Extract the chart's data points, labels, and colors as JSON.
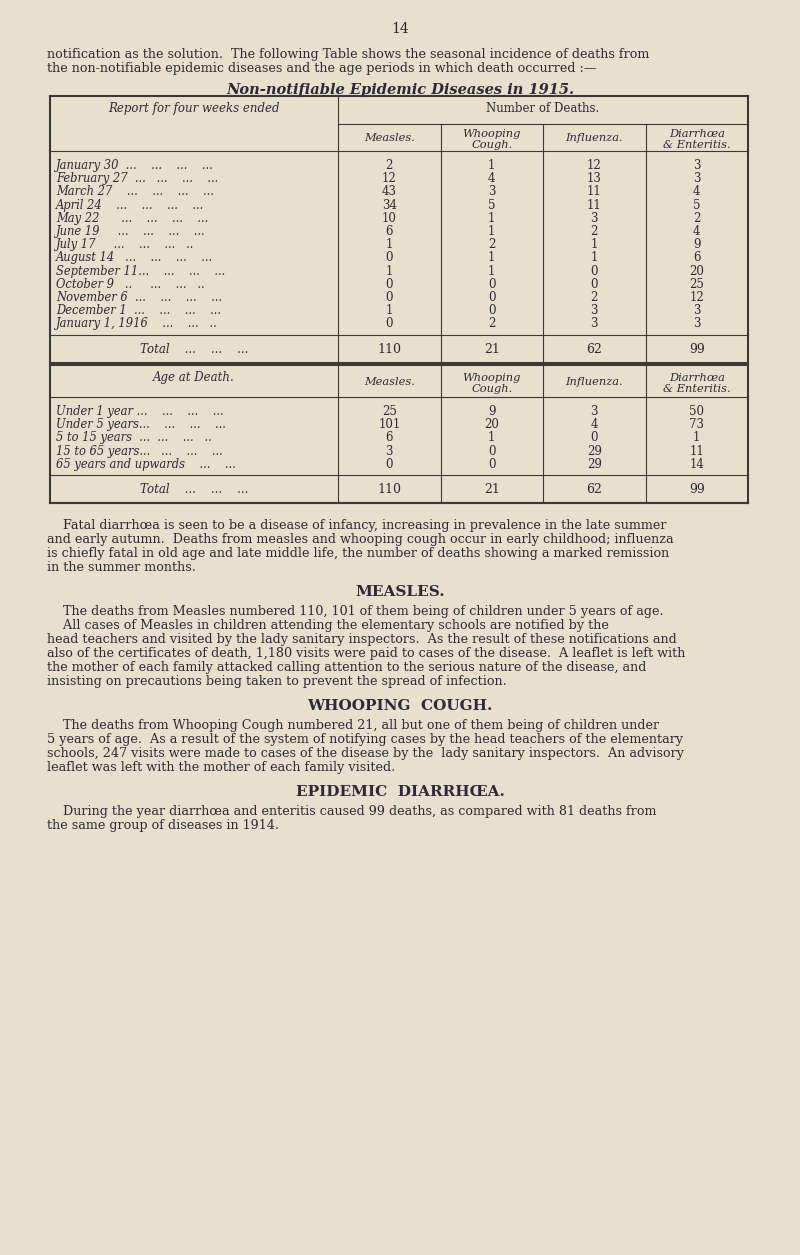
{
  "page_number": "14",
  "bg_color": "#e8e0cc",
  "text_color": "#2a2a3a",
  "intro_line1": "notification as the solution.  The following Table shows the seasonal incidence of deaths from",
  "intro_line2": "the non-notifiable epidemic diseases and the age periods in which death occurred :—",
  "table_title": "Non-notifiable Epidemic Diseases in 1915.",
  "table1_header_col0": "Report for four weeks ended",
  "table1_header_group": "Number of Deaths.",
  "table1_col_headers": [
    "Measles.",
    "Whooping\nCough.",
    "Influenza.",
    "Diarrhœa\n& Enteritis."
  ],
  "table1_rows": [
    [
      "January 30  ...    ...    ...    ...",
      "2",
      "1",
      "12",
      "3"
    ],
    [
      "February 27  ...   ...    ...    ...",
      "12",
      "4",
      "13",
      "3"
    ],
    [
      "March 27    ...    ...    ...    ...",
      "43",
      "3",
      "11",
      "4"
    ],
    [
      "April 24    ...    ...    ...    ...",
      "34",
      "5",
      "11",
      "5"
    ],
    [
      "May 22      ...    ...    ...    ...",
      "10",
      "1",
      "3",
      "2"
    ],
    [
      "June 19     ...    ...    ...    ...",
      "6",
      "1",
      "2",
      "4"
    ],
    [
      "July 17     ...    ...    ...   ..",
      "1",
      "2",
      "1",
      "9"
    ],
    [
      "August 14   ...    ...    ...    ...",
      "0",
      "1",
      "1",
      "6"
    ],
    [
      "September 11...    ...    ...    ...",
      "1",
      "1",
      "0",
      "20"
    ],
    [
      "October 9   ..     ...    ...   ..",
      "0",
      "0",
      "0",
      "25"
    ],
    [
      "November 6  ...    ...    ...    ...",
      "0",
      "0",
      "2",
      "12"
    ],
    [
      "December 1  ...    ...    ...    ...",
      "1",
      "0",
      "3",
      "3"
    ],
    [
      "January 1, 1916    ...    ...   ..",
      "0",
      "2",
      "3",
      "3"
    ]
  ],
  "table1_total": [
    "Total    ...    ...    ...",
    "110",
    "21",
    "62",
    "99"
  ],
  "table2_header_col0": "Age at Death.",
  "table2_col_headers": [
    "Measles.",
    "Whooping\nCough.",
    "Influenza.",
    "Diarrhœa\n& Enteritis."
  ],
  "table2_rows": [
    [
      "Under 1 year ...    ...    ...    ...",
      "25",
      "9",
      "3",
      "50"
    ],
    [
      "Under 5 years...    ...    ...    ...",
      "101",
      "20",
      "4",
      "73"
    ],
    [
      "5 to 15 years  ...  ...    ...   ..",
      "6",
      "1",
      "0",
      "1"
    ],
    [
      "15 to 65 years...   ...    ...    ...",
      "3",
      "0",
      "29",
      "11"
    ],
    [
      "65 years and upwards    ...    ...",
      "0",
      "0",
      "29",
      "14"
    ]
  ],
  "table2_total": [
    "Total    ...    ...    ...",
    "110",
    "21",
    "62",
    "99"
  ],
  "para1_lines": [
    "    Fatal diarrhœa is seen to be a disease of infancy, increasing in prevalence in the late summer",
    "and early autumn.  Deaths from measles and whooping cough occur in early childhood; influenza",
    "is chiefly fatal in old age and late middle life, the number of deaths showing a marked remission",
    "in the summer months."
  ],
  "section1_title": "MEASLES.",
  "section1_para1": "    The deaths from Measles numbered 110, 101 of them being of children under 5 years of age.",
  "section1_para2_lines": [
    "    All cases of Measles in children attending the elementary schools are notified by the",
    "head teachers and visited by the lady sanitary inspectors.  As the result of these notifications and",
    "also of the certificates of death, 1,180 visits were paid to cases of the disease.  A leaflet is left with",
    "the mother of each family attacked calling attention to the serious nature of the disease, and",
    "insisting on precautions being taken to prevent the spread of infection."
  ],
  "section2_title": "WHOOPING  COUGH.",
  "section2_para_lines": [
    "    The deaths from Whooping Cough numbered 21, all but one of them being of children under",
    "5 years of age.  As a result of the system of notifying cases by the head teachers of the elementary",
    "schools, 247 visits were made to cases of the disease by the  lady sanitary inspectors.  An advisory",
    "leaflet was left with the mother of each family visited."
  ],
  "section3_title": "EPIDEMIC  DIARRHŒA.",
  "section3_para_lines": [
    "    During the year diarrhœa and enteritis caused 99 deaths, as compared with 81 deaths from",
    "the same group of diseases in 1914."
  ]
}
